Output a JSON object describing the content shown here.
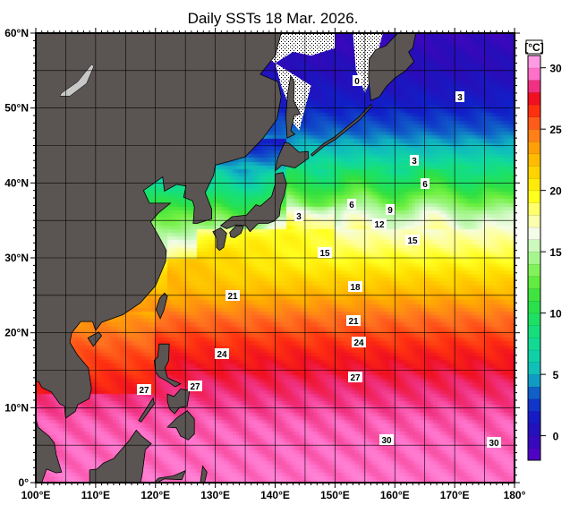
{
  "title": "Daily SSTs 18 Mar. 2026.",
  "map": {
    "lon_range": [
      100,
      180
    ],
    "lat_range": [
      0,
      60
    ],
    "grid_step_deg": 5,
    "lon_labels": [
      "100°E",
      "110°E",
      "120°E",
      "130°E",
      "140°E",
      "150°E",
      "160°E",
      "170°E",
      "180°"
    ],
    "lat_labels": [
      "0°",
      "10°N",
      "20°N",
      "30°N",
      "40°N",
      "50°N",
      "60°N"
    ],
    "land_color": "#5a5452",
    "sea_ice": "hatched white",
    "contour_labels": [
      "0",
      "3",
      "3",
      "6",
      "6",
      "9",
      "12",
      "3",
      "15",
      "15",
      "18",
      "21",
      "21",
      "24",
      "24",
      "27",
      "27",
      "27",
      "30",
      "30"
    ]
  },
  "colorbar": {
    "unit": "[°C]",
    "tick_labels": [
      "30",
      "25",
      "20",
      "15",
      "10",
      "5",
      "0"
    ],
    "range": [
      -2,
      31
    ],
    "stops": [
      [
        -2,
        "#5a00c8"
      ],
      [
        0,
        "#2a0cb8"
      ],
      [
        2,
        "#1020c8"
      ],
      [
        3.5,
        "#1060c8"
      ],
      [
        5,
        "#10b8c0"
      ],
      [
        7,
        "#10d8a0"
      ],
      [
        9,
        "#18e070"
      ],
      [
        11,
        "#30e040"
      ],
      [
        13,
        "#70f040"
      ],
      [
        15,
        "#b8f8a8"
      ],
      [
        16.5,
        "#f4fce8"
      ],
      [
        18,
        "#ffff90"
      ],
      [
        19.5,
        "#ffff20"
      ],
      [
        21,
        "#ffe000"
      ],
      [
        23,
        "#ffb000"
      ],
      [
        25,
        "#ff7020"
      ],
      [
        26.5,
        "#ff3010"
      ],
      [
        27.5,
        "#f01020"
      ],
      [
        28.5,
        "#f03080"
      ],
      [
        29.5,
        "#ff70c8"
      ],
      [
        31,
        "#ffb0f4"
      ]
    ]
  }
}
